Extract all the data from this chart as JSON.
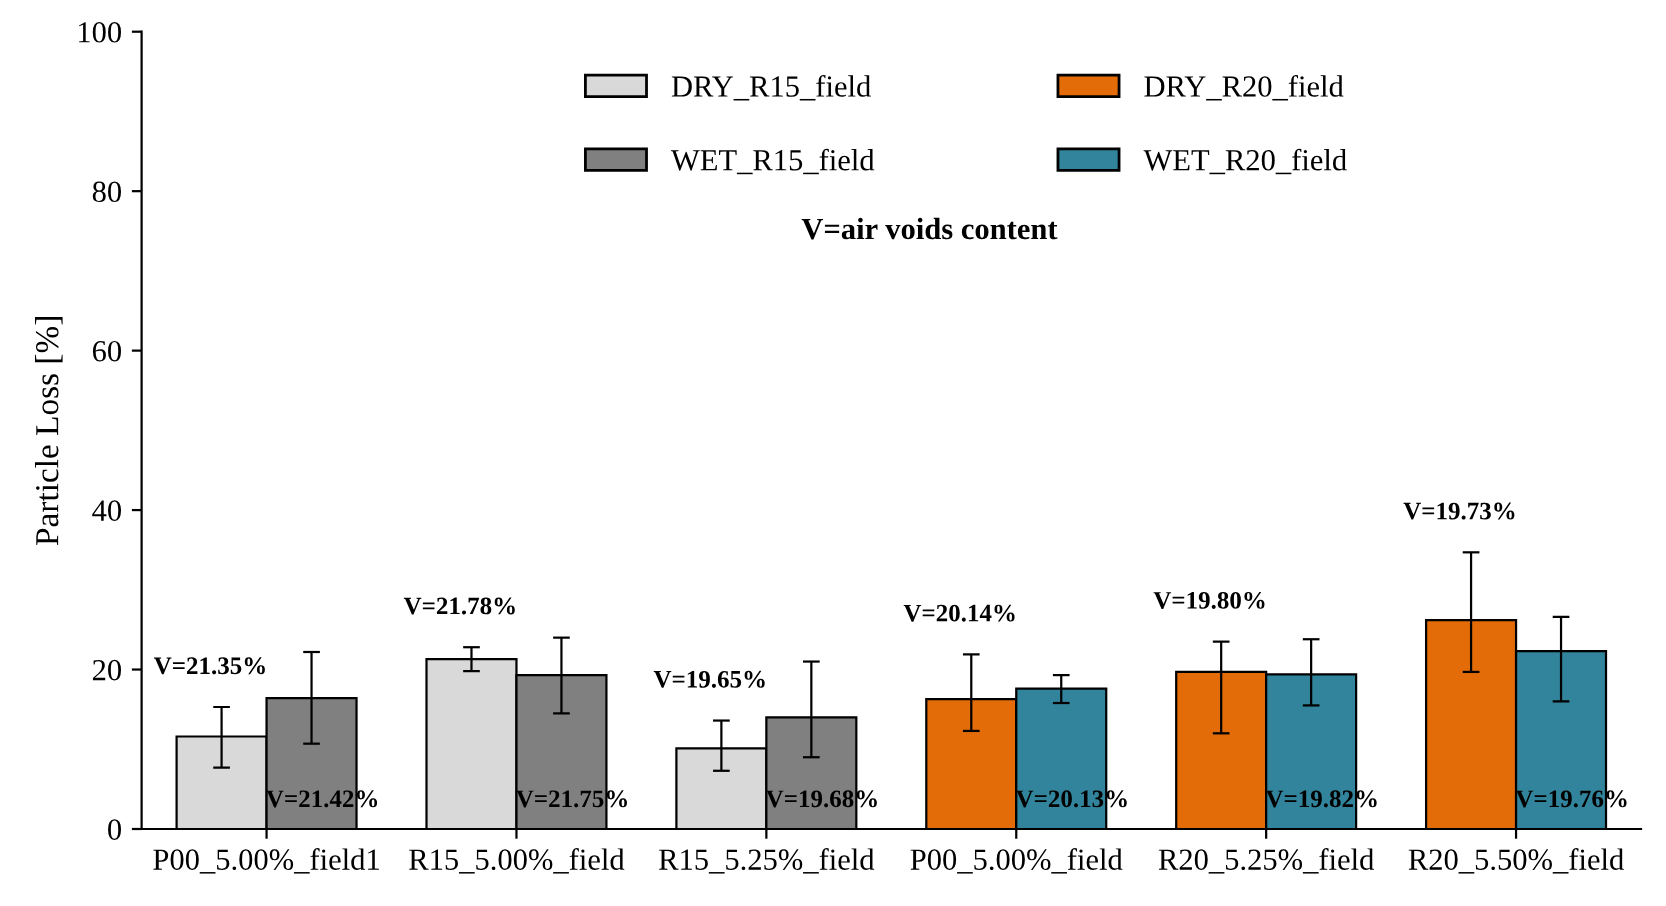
{
  "chart_data": {
    "type": "bar",
    "ylabel": "Particle Loss [%]",
    "categories": [
      "P00_5.00%_field1",
      "R15_5.00%_field",
      "R15_5.25%_field",
      "P00_5.00%_field",
      "R20_5.25%_field",
      "R20_5.50%_field"
    ],
    "series": [
      {
        "name": "DRY_R15_field",
        "color": "#d9d9d9",
        "values": [
          11.6,
          21.3,
          10.1,
          null,
          null,
          null
        ],
        "errors": [
          [
            7.7,
            15.3
          ],
          [
            19.8,
            22.8
          ],
          [
            7.3,
            13.6
          ],
          null,
          null,
          null
        ]
      },
      {
        "name": "WET_R15_field",
        "color": "#808080",
        "values": [
          16.4,
          19.3,
          14.0,
          null,
          null,
          null
        ],
        "errors": [
          [
            10.7,
            22.2
          ],
          [
            14.5,
            24.0
          ],
          [
            9.0,
            21.0
          ],
          null,
          null,
          null
        ]
      },
      {
        "name": "DRY_R20_field",
        "color": "#e36c09",
        "values": [
          null,
          null,
          null,
          16.3,
          19.7,
          26.2
        ],
        "errors": [
          null,
          null,
          null,
          [
            12.3,
            21.9
          ],
          [
            12.0,
            23.5
          ],
          [
            19.7,
            34.7
          ]
        ]
      },
      {
        "name": "WET_R20_field",
        "color": "#31849b",
        "values": [
          null,
          null,
          null,
          17.6,
          19.4,
          22.3
        ],
        "errors": [
          null,
          null,
          null,
          [
            15.8,
            19.3
          ],
          [
            15.5,
            23.8
          ],
          [
            16.0,
            26.6
          ]
        ]
      }
    ],
    "ylim": [
      0,
      100
    ],
    "yticks": [
      0,
      20,
      40,
      60,
      80,
      100
    ],
    "grid": false,
    "legend": "top",
    "annotations": [
      "V=air voids content",
      "V=21.35%",
      "V=21.42%",
      "V=21.78%",
      "V=21.75%",
      "V=19.65%",
      "V=19.68%",
      "V=20.14%",
      "V=20.13%",
      "V=19.80%",
      "V=19.82%",
      "V=19.73%",
      "V=19.76%"
    ]
  }
}
